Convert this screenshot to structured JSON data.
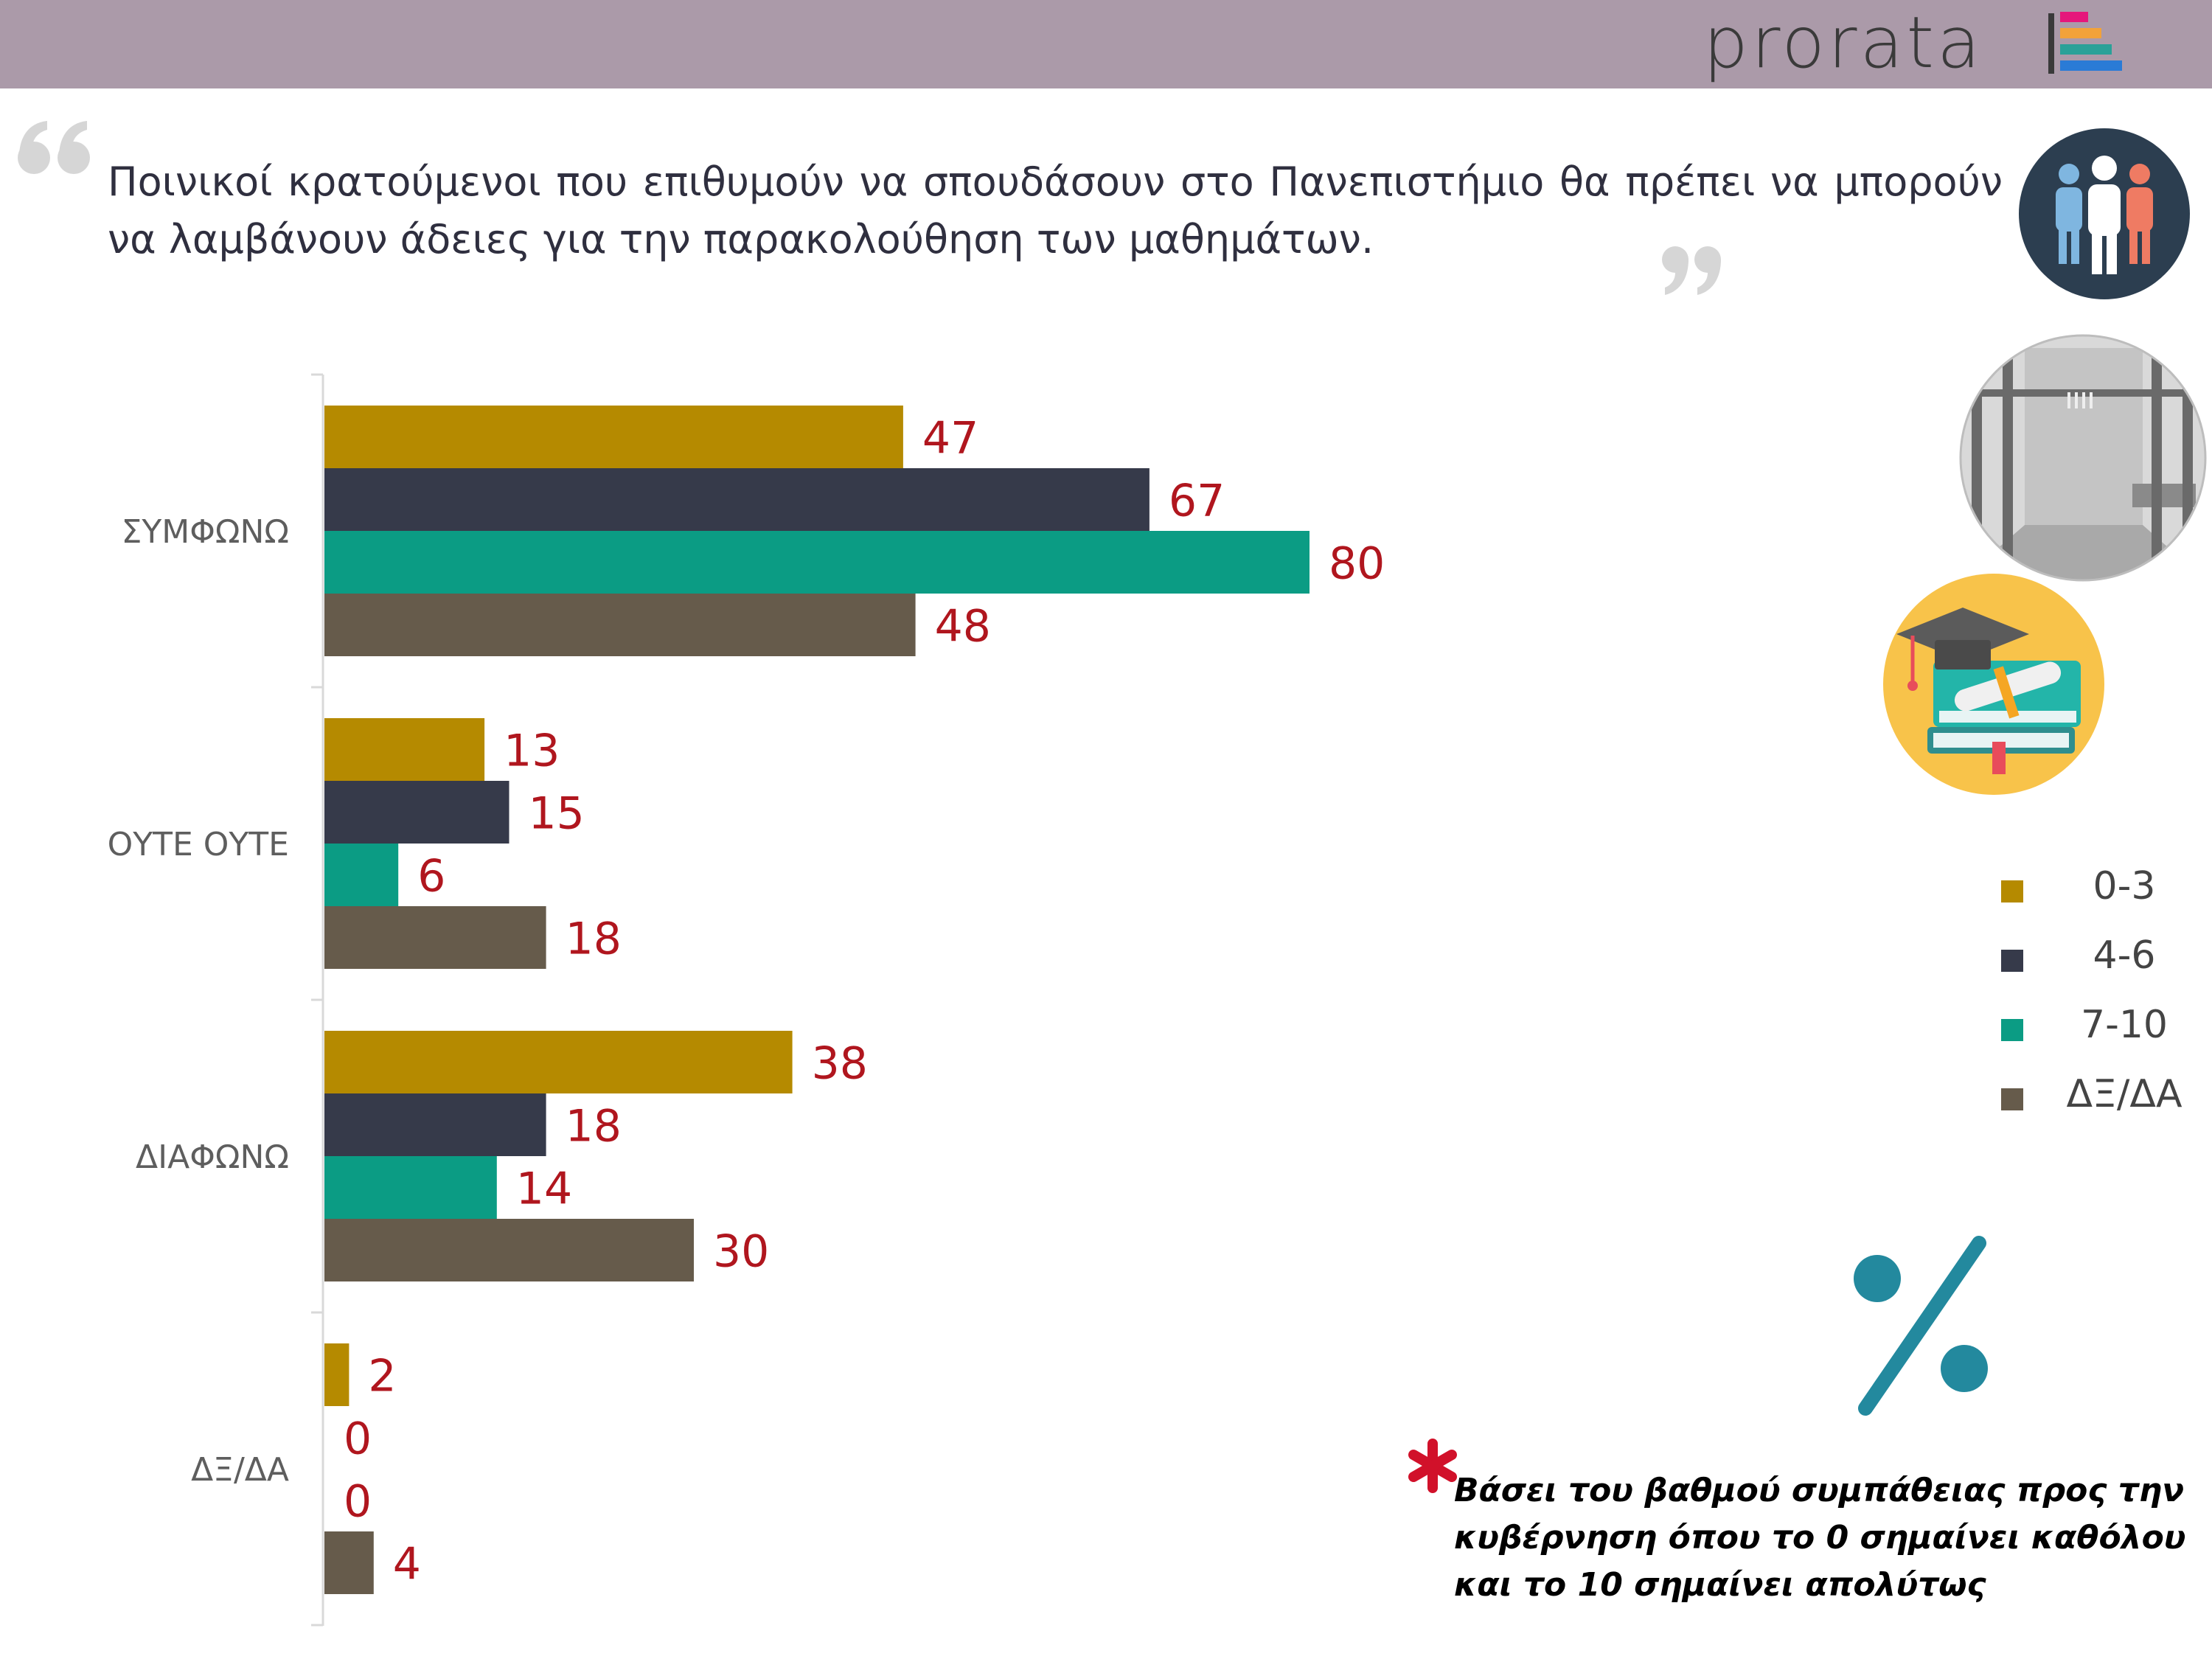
{
  "brand": {
    "name": "prorata",
    "logo_colors": [
      "#e5177b",
      "#f2a23a",
      "#2aa198",
      "#2a7bd6"
    ]
  },
  "headline": "Ποινικοί κρατούμενοι που επιθυμούν να σπουδάσουν στο Πανεπιστήμιο θα πρέπει να μπορούν να λαμβάνουν άδειες για την παρακολούθηση των μαθημάτων.",
  "icons": {
    "quote_open": "quote-open-icon",
    "quote_close": "quote-close-icon",
    "people": "people-group-icon",
    "prison": "prison-cell-icon",
    "graduation": "graduation-books-icon",
    "percent": "percent-icon",
    "asterisk": "asterisk-icon"
  },
  "chart_data": {
    "type": "bar",
    "orientation": "horizontal",
    "categories": [
      "ΣΥΜΦΩΝΩ",
      "ΟΥΤΕ ΟΥΤΕ",
      "ΔΙΑΦΩΝΩ",
      "ΔΞ/ΔΑ"
    ],
    "series": [
      {
        "name": "0-3",
        "color": "#b58a00",
        "values": [
          47,
          13,
          38,
          2
        ]
      },
      {
        "name": "4-6",
        "color": "#363a4a",
        "values": [
          67,
          15,
          18,
          0
        ]
      },
      {
        "name": "7-10",
        "color": "#0b9c84",
        "values": [
          80,
          6,
          14,
          0
        ]
      },
      {
        "name": "ΔΞ/ΔΑ",
        "color": "#665b4b",
        "values": [
          48,
          18,
          30,
          4
        ]
      }
    ],
    "xlim": [
      0,
      100
    ],
    "value_label_color": "#b0161e",
    "legend": "right",
    "grid": false
  },
  "note": "Βάσει του βαθμού συμπάθειας προς την κυβέρνηση όπου το 0 σημαίνει καθόλου και το 10 σημαίνει απολύτως"
}
